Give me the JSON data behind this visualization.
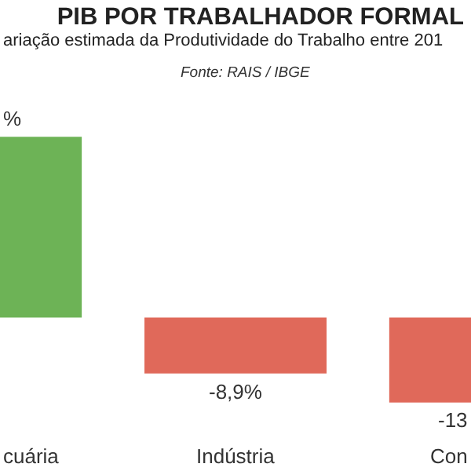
{
  "chart_data": {
    "type": "bar",
    "title": "PIB POR TRABALHADOR FORMAL",
    "subtitle": "ariação estimada da Produtividade do Trabalho entre 201",
    "annotations": [
      "Fonte: RAIS / IBGE"
    ],
    "categories": [
      "cuária",
      "Indústria",
      "Con"
    ],
    "values": [
      28.7,
      -8.9,
      -13.5
    ],
    "colors": [
      "#6db356",
      "#e0695a",
      "#e0695a"
    ],
    "value_labels": [
      "%",
      "-8,9%",
      "-13"
    ],
    "grid": false,
    "legend": false
  }
}
